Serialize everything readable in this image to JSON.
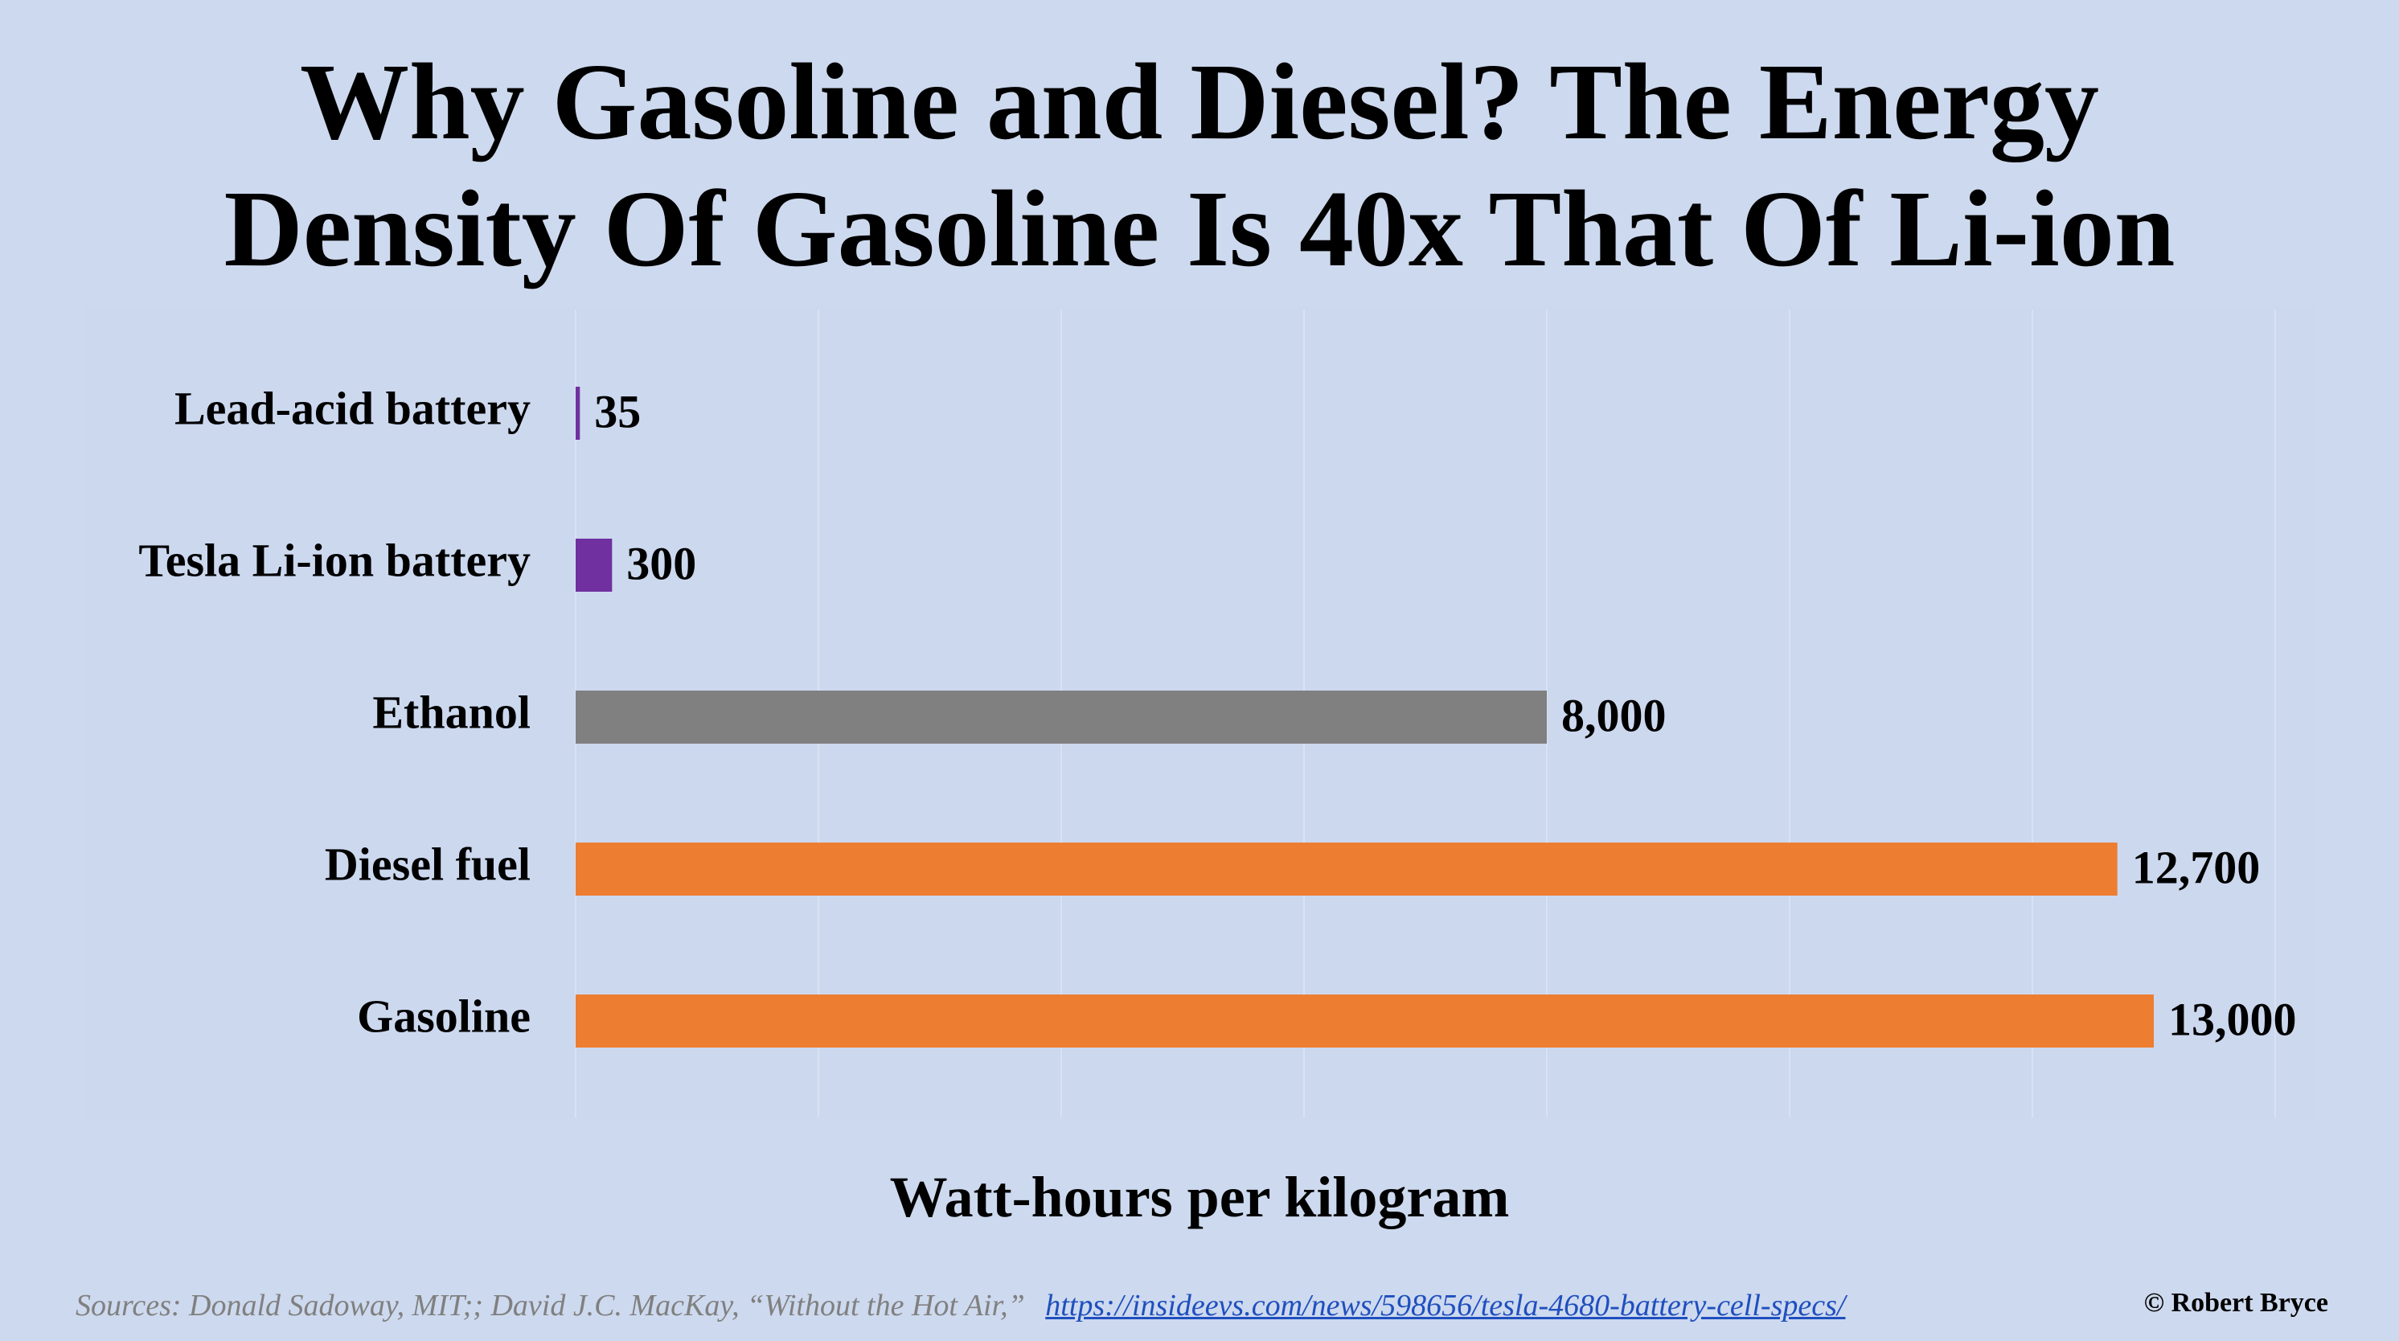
{
  "chart_data": {
    "type": "bar",
    "orientation": "horizontal",
    "title_lines": [
      "Why Gasoline and Diesel? The Energy",
      "Density Of Gasoline Is 40x That Of Li-ion"
    ],
    "xlabel": "Watt-hours per kilogram",
    "categories": [
      "Lead-acid battery",
      "Tesla Li-ion battery",
      "Ethanol",
      "Diesel fuel",
      "Gasoline"
    ],
    "values": [
      35,
      300,
      8000,
      12700,
      13000
    ],
    "value_labels": [
      "35",
      "300",
      "8,000",
      "12,700",
      "13,000"
    ],
    "colors": [
      "#7030a0",
      "#7030a0",
      "#808080",
      "#ed7d31",
      "#ed7d31"
    ],
    "xlim": [
      0,
      14000
    ],
    "grid": true
  },
  "footer": {
    "sources_text": "Sources: Donald Sadoway, MIT;; David J.C. MacKay, “Without the Hot Air,”",
    "sources_link": "https://insideevs.com/news/598656/tesla-4680-battery-cell-specs/",
    "credit": "© Robert Bryce"
  }
}
